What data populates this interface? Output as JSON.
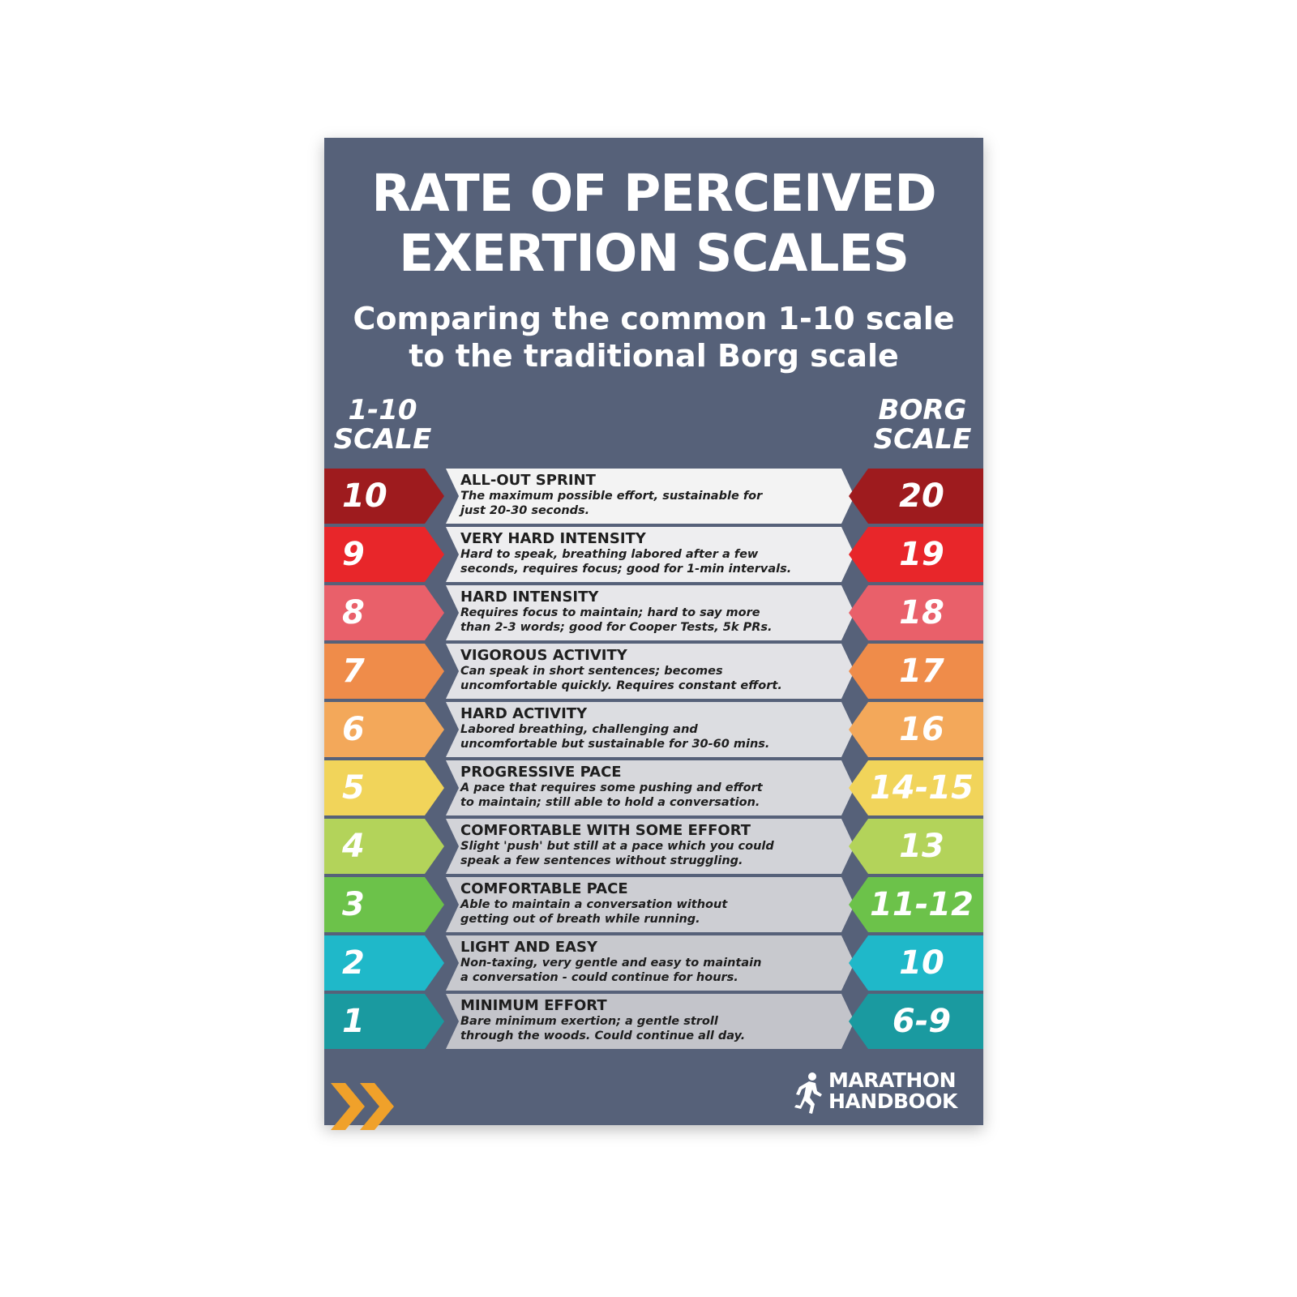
{
  "poster": {
    "title_line1": "RATE OF PERCEIVED",
    "title_line2": "EXERTION SCALES",
    "subtitle_line1": "Comparing the common 1-10 scale",
    "subtitle_line2": "to the traditional Borg scale",
    "left_header_line1": "1-10",
    "left_header_line2": "SCALE",
    "right_header_line1": "BORG",
    "right_header_line2": "SCALE",
    "background_color": "#566179"
  },
  "rows": [
    {
      "rpe": "10",
      "borg": "20",
      "title": "ALL-OUT SPRINT",
      "line1": "The maximum possible effort, sustainable for",
      "line2": "just 20-30 seconds.",
      "color": "#9e1b1e"
    },
    {
      "rpe": "9",
      "borg": "19",
      "title": "VERY HARD INTENSITY",
      "line1": "Hard to speak, breathing labored after a few",
      "line2": "seconds, requires focus; good for 1-min intervals.",
      "color": "#e8262a"
    },
    {
      "rpe": "8",
      "borg": "18",
      "title": "HARD INTENSITY",
      "line1": "Requires focus to maintain; hard to say more",
      "line2": "than 2-3 words; good for Cooper Tests, 5k PRs.",
      "color": "#e9606a"
    },
    {
      "rpe": "7",
      "borg": "17",
      "title": "VIGOROUS ACTIVITY",
      "line1": "Can speak in short sentences; becomes",
      "line2": "uncomfortable quickly. Requires constant effort.",
      "color": "#ef8c4a"
    },
    {
      "rpe": "6",
      "borg": "16",
      "title": "HARD ACTIVITY",
      "line1": "Labored breathing, challenging and",
      "line2": "uncomfortable but sustainable for 30-60 mins.",
      "color": "#f3a85a"
    },
    {
      "rpe": "5",
      "borg": "14-15",
      "title": "PROGRESSIVE PACE",
      "line1": "A pace that requires some pushing and effort",
      "line2": "to maintain; still able to hold a conversation.",
      "color": "#f1d45a"
    },
    {
      "rpe": "4",
      "borg": "13",
      "title": "COMFORTABLE WITH SOME EFFORT",
      "line1": "Slight 'push' but still at a pace which you could",
      "line2": "speak a few sentences without struggling.",
      "color": "#b3d35a"
    },
    {
      "rpe": "3",
      "borg": "11-12",
      "title": "COMFORTABLE PACE",
      "line1": "Able to maintain a conversation without",
      "line2": "getting out of breath while running.",
      "color": "#6cc24a"
    },
    {
      "rpe": "2",
      "borg": "10",
      "title": "LIGHT AND EASY",
      "line1": "Non-taxing, very gentle and easy to maintain",
      "line2": "a conversation - could continue for hours.",
      "color": "#1fb8c9"
    },
    {
      "rpe": "1",
      "borg": "6-9",
      "title": "MINIMUM EFFORT",
      "line1": "Bare minimum exertion; a gentle stroll",
      "line2": "through the woods. Could continue all day.",
      "color": "#1a9aa0"
    }
  ],
  "desc_backgrounds": [
    "#f3f3f3",
    "#eeeef0",
    "#e7e7ea",
    "#e2e2e6",
    "#dcdde1",
    "#d7d8dc",
    "#d2d3d8",
    "#cdced3",
    "#c8c9ce",
    "#c3c4ca"
  ],
  "brand": {
    "line1": "MARATHON",
    "line2": "HANDBOOK",
    "runner_icon": "runner-icon",
    "chevron_color": "#f0a12a"
  }
}
